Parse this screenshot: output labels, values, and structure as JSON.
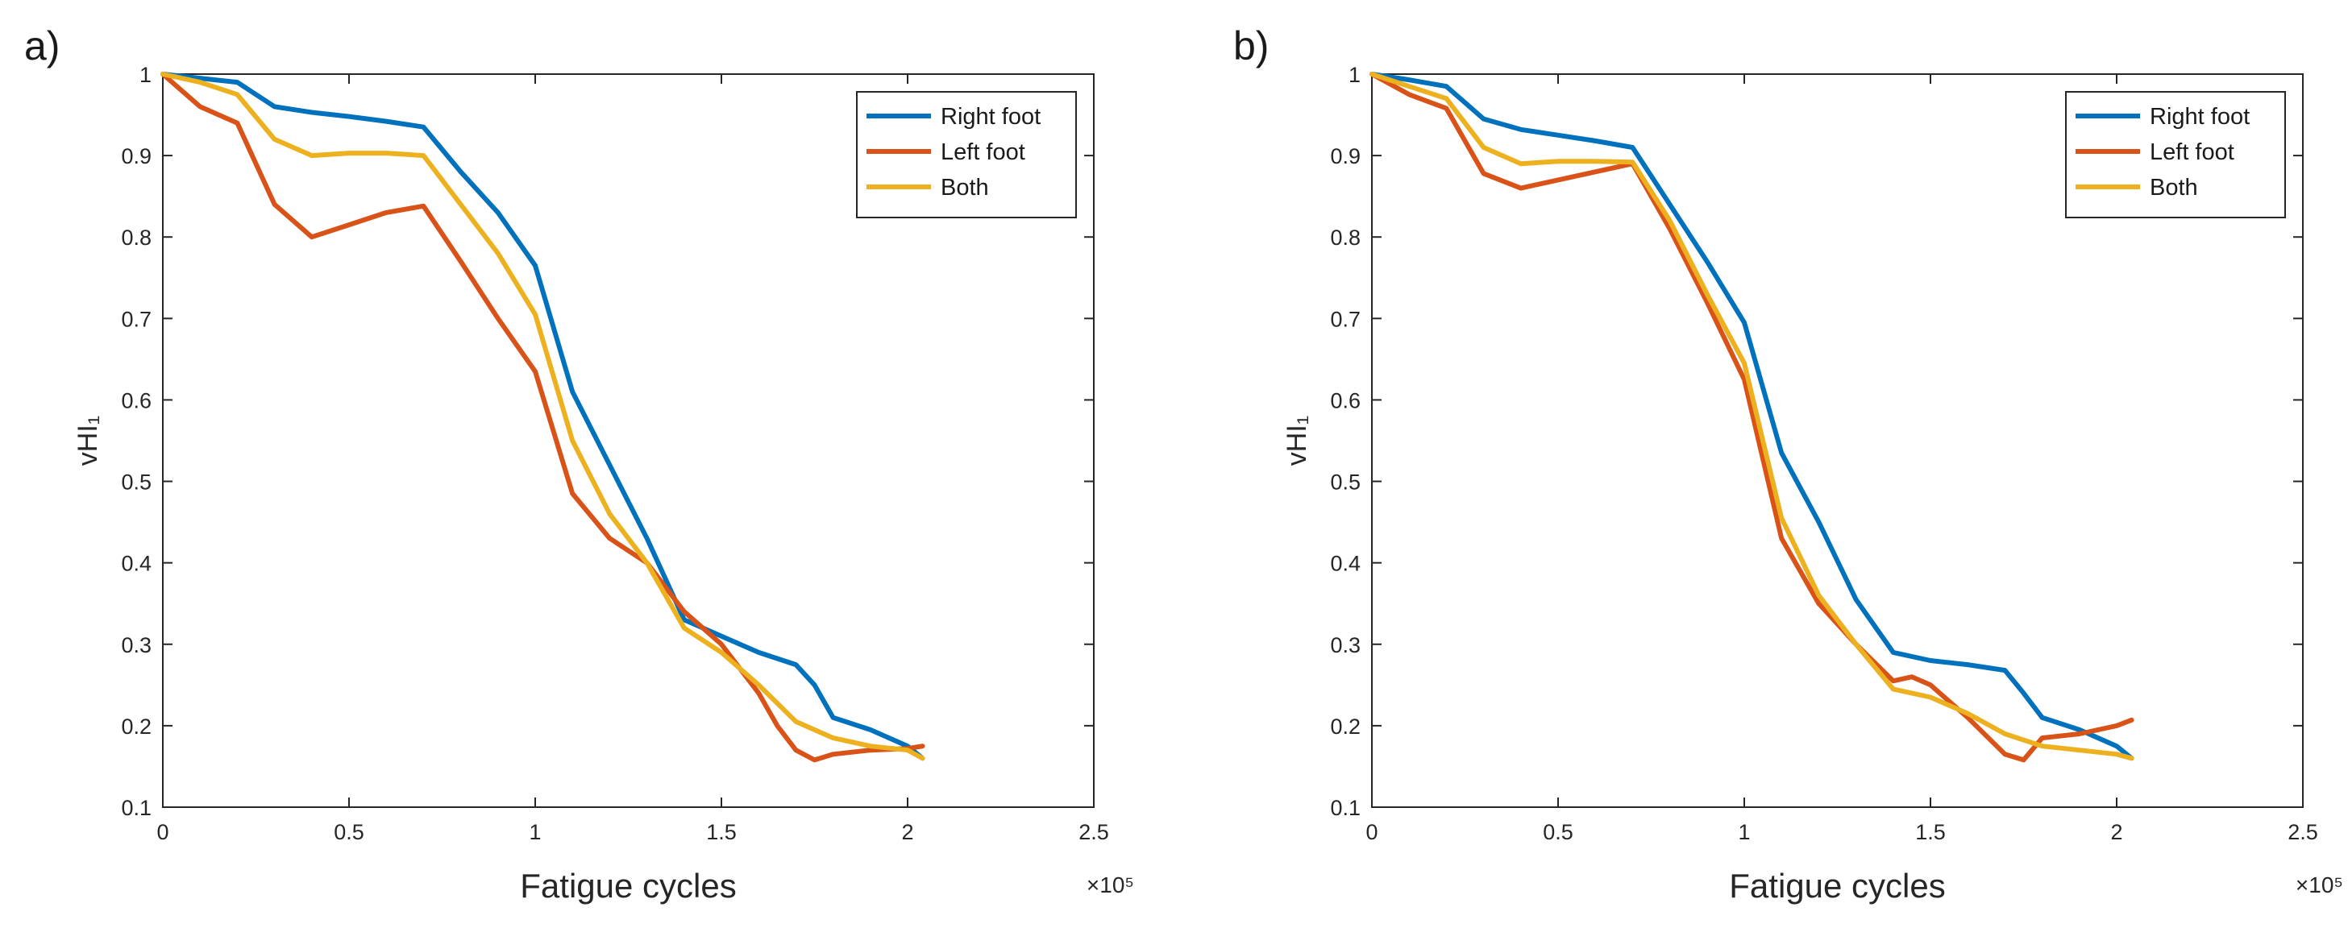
{
  "chart_data": [
    {
      "panel_label": "a)",
      "type": "line",
      "xlabel": "Fatigue cycles",
      "ylabel": "vHI₁",
      "x_exponent": "×10⁵",
      "xlim": [
        0,
        2.5
      ],
      "ylim": [
        0.1,
        1
      ],
      "xticks": [
        "0",
        "0.5",
        "1",
        "1.5",
        "2",
        "2.5"
      ],
      "yticks": [
        "0.1",
        "0.2",
        "0.3",
        "0.4",
        "0.5",
        "0.6",
        "0.7",
        "0.8",
        "0.9",
        "1"
      ],
      "grid": false,
      "legend_position": "top-right",
      "series": [
        {
          "name": "Right foot",
          "color": "#0072BD",
          "x": [
            0,
            0.1,
            0.2,
            0.3,
            0.4,
            0.5,
            0.6,
            0.7,
            0.8,
            0.9,
            1.0,
            1.1,
            1.2,
            1.3,
            1.4,
            1.5,
            1.6,
            1.7,
            1.75,
            1.8,
            1.9,
            2.0,
            2.04
          ],
          "y": [
            1.0,
            0.995,
            0.99,
            0.96,
            0.953,
            0.948,
            0.942,
            0.935,
            0.88,
            0.83,
            0.765,
            0.61,
            0.52,
            0.43,
            0.33,
            0.31,
            0.29,
            0.275,
            0.25,
            0.21,
            0.195,
            0.175,
            0.16
          ]
        },
        {
          "name": "Left foot",
          "color": "#D95319",
          "x": [
            0,
            0.1,
            0.2,
            0.3,
            0.4,
            0.5,
            0.6,
            0.7,
            0.8,
            0.9,
            1.0,
            1.1,
            1.2,
            1.3,
            1.4,
            1.5,
            1.6,
            1.65,
            1.7,
            1.75,
            1.8,
            1.9,
            2.0,
            2.04
          ],
          "y": [
            1.0,
            0.96,
            0.94,
            0.84,
            0.8,
            0.815,
            0.83,
            0.838,
            0.77,
            0.7,
            0.635,
            0.485,
            0.43,
            0.4,
            0.34,
            0.3,
            0.24,
            0.2,
            0.17,
            0.158,
            0.165,
            0.17,
            0.172,
            0.175
          ]
        },
        {
          "name": "Both",
          "color": "#EDB120",
          "x": [
            0,
            0.1,
            0.2,
            0.3,
            0.4,
            0.5,
            0.6,
            0.7,
            0.8,
            0.9,
            1.0,
            1.1,
            1.2,
            1.3,
            1.4,
            1.5,
            1.6,
            1.7,
            1.8,
            1.9,
            2.0,
            2.04
          ],
          "y": [
            1.0,
            0.99,
            0.975,
            0.92,
            0.9,
            0.903,
            0.903,
            0.9,
            0.84,
            0.78,
            0.705,
            0.55,
            0.46,
            0.4,
            0.32,
            0.29,
            0.25,
            0.205,
            0.185,
            0.175,
            0.17,
            0.16
          ]
        }
      ]
    },
    {
      "panel_label": "b)",
      "type": "line",
      "xlabel": "Fatigue cycles",
      "ylabel": "vHI₁",
      "x_exponent": "×10⁵",
      "xlim": [
        0,
        2.5
      ],
      "ylim": [
        0.1,
        1
      ],
      "xticks": [
        "0",
        "0.5",
        "1",
        "1.5",
        "2",
        "2.5"
      ],
      "yticks": [
        "0.1",
        "0.2",
        "0.3",
        "0.4",
        "0.5",
        "0.6",
        "0.7",
        "0.8",
        "0.9",
        "1"
      ],
      "grid": false,
      "legend_position": "top-right",
      "series": [
        {
          "name": "Right foot",
          "color": "#0072BD",
          "x": [
            0,
            0.1,
            0.2,
            0.3,
            0.4,
            0.5,
            0.6,
            0.7,
            0.8,
            0.9,
            1.0,
            1.1,
            1.2,
            1.3,
            1.4,
            1.5,
            1.6,
            1.7,
            1.75,
            1.8,
            1.9,
            2.0,
            2.04
          ],
          "y": [
            1.0,
            0.993,
            0.985,
            0.945,
            0.932,
            0.925,
            0.918,
            0.91,
            0.84,
            0.77,
            0.695,
            0.535,
            0.45,
            0.355,
            0.29,
            0.28,
            0.275,
            0.268,
            0.24,
            0.21,
            0.195,
            0.175,
            0.16
          ]
        },
        {
          "name": "Left foot",
          "color": "#D95319",
          "x": [
            0,
            0.1,
            0.2,
            0.3,
            0.4,
            0.5,
            0.6,
            0.7,
            0.8,
            0.9,
            1.0,
            1.1,
            1.2,
            1.3,
            1.4,
            1.45,
            1.5,
            1.6,
            1.7,
            1.75,
            1.8,
            1.9,
            2.0,
            2.04
          ],
          "y": [
            1.0,
            0.975,
            0.958,
            0.878,
            0.86,
            0.87,
            0.88,
            0.89,
            0.81,
            0.72,
            0.625,
            0.43,
            0.35,
            0.3,
            0.255,
            0.26,
            0.25,
            0.21,
            0.165,
            0.158,
            0.185,
            0.19,
            0.2,
            0.207
          ]
        },
        {
          "name": "Both",
          "color": "#EDB120",
          "x": [
            0,
            0.1,
            0.2,
            0.3,
            0.4,
            0.5,
            0.6,
            0.7,
            0.8,
            0.9,
            1.0,
            1.1,
            1.2,
            1.3,
            1.4,
            1.5,
            1.6,
            1.7,
            1.8,
            1.9,
            2.0,
            2.04
          ],
          "y": [
            1.0,
            0.985,
            0.97,
            0.91,
            0.89,
            0.893,
            0.893,
            0.892,
            0.82,
            0.73,
            0.645,
            0.455,
            0.36,
            0.3,
            0.245,
            0.235,
            0.215,
            0.19,
            0.175,
            0.17,
            0.165,
            0.16
          ]
        }
      ]
    }
  ]
}
